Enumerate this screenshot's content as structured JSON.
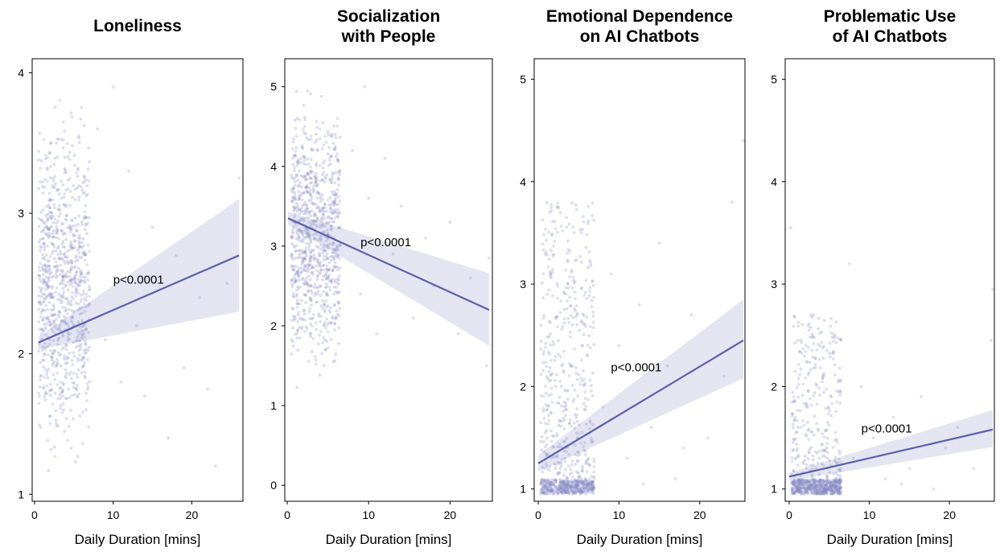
{
  "colors": {
    "point": "#8a8cc4",
    "line": "#5b5fa8",
    "ci_band": "#dfe0ee"
  },
  "chart_data": [
    {
      "type": "scatter",
      "title": "Loneliness",
      "xlabel": "Daily Duration [mins]",
      "ylabel": "",
      "xlim": [
        -0.3,
        26.5
      ],
      "ylim": [
        0.95,
        4.1
      ],
      "xticks": [
        0,
        10,
        20
      ],
      "yticks": [
        1,
        2,
        3,
        4
      ],
      "cluster": {
        "x_range": [
          0.5,
          7
        ],
        "y_range": [
          1,
          4
        ],
        "count": 900
      },
      "outliers": [
        {
          "x": 8,
          "y": 3.6
        },
        {
          "x": 9,
          "y": 2.1
        },
        {
          "x": 11,
          "y": 1.8
        },
        {
          "x": 12,
          "y": 3.3
        },
        {
          "x": 14,
          "y": 1.7
        },
        {
          "x": 15,
          "y": 2.9
        },
        {
          "x": 17,
          "y": 1.4
        },
        {
          "x": 18,
          "y": 2.7
        },
        {
          "x": 19,
          "y": 1.9
        },
        {
          "x": 21,
          "y": 2.4
        },
        {
          "x": 23,
          "y": 1.2
        },
        {
          "x": 24.5,
          "y": 2.5
        },
        {
          "x": 26,
          "y": 3.25
        },
        {
          "x": 22,
          "y": 1.75
        },
        {
          "x": 10,
          "y": 3.9
        },
        {
          "x": 13,
          "y": 2.2
        }
      ],
      "regression": {
        "x": [
          0.5,
          26
        ],
        "y": [
          2.08,
          2.7
        ]
      },
      "ci": {
        "lower": [
          2.03,
          2.3
        ],
        "upper": [
          2.12,
          3.1
        ]
      },
      "annotation": {
        "text": "p<0.0001",
        "x": 10,
        "y": 2.5
      }
    },
    {
      "type": "scatter",
      "title": "Socialization with People",
      "title_lines": [
        "Socialization",
        "with People"
      ],
      "xlabel": "Daily Duration [mins]",
      "ylabel": "",
      "xlim": [
        -0.3,
        25.2
      ],
      "ylim": [
        -0.2,
        5.35
      ],
      "xticks": [
        0,
        10,
        20
      ],
      "yticks": [
        0,
        1,
        2,
        3,
        4,
        5
      ],
      "cluster": {
        "x_range": [
          0.5,
          6.5
        ],
        "y_range": [
          1,
          5.2
        ],
        "count": 900
      },
      "outliers": [
        {
          "x": 8,
          "y": 4.2
        },
        {
          "x": 9,
          "y": 2.4
        },
        {
          "x": 10,
          "y": 3.6
        },
        {
          "x": 11,
          "y": 1.9
        },
        {
          "x": 12,
          "y": 4.1
        },
        {
          "x": 13,
          "y": 2.9
        },
        {
          "x": 14,
          "y": 3.5
        },
        {
          "x": 15.5,
          "y": 2.1
        },
        {
          "x": 17,
          "y": 3.1
        },
        {
          "x": 18,
          "y": 2.5
        },
        {
          "x": 20,
          "y": 3.3
        },
        {
          "x": 21,
          "y": 1.9
        },
        {
          "x": 22.5,
          "y": 2.6
        },
        {
          "x": 24.8,
          "y": 2.85
        },
        {
          "x": 24.5,
          "y": 1.5
        },
        {
          "x": 9.5,
          "y": 5.0
        }
      ],
      "regression": {
        "x": [
          0.1,
          24.8
        ],
        "y": [
          3.35,
          2.2
        ]
      },
      "ci": {
        "lower": [
          3.27,
          1.75
        ],
        "upper": [
          3.43,
          2.66
        ]
      },
      "annotation": {
        "text": "p<0.0001",
        "x": 9,
        "y": 3.0
      }
    },
    {
      "type": "scatter",
      "title": "Emotional Dependence on AI Chatbots",
      "title_lines": [
        "Emotional Dependence",
        "on AI Chatbots"
      ],
      "xlabel": "Daily Duration [mins]",
      "ylabel": "",
      "xlim": [
        -0.5,
        25.6
      ],
      "ylim": [
        0.88,
        5.2
      ],
      "xticks": [
        0,
        10,
        20
      ],
      "yticks": [
        1,
        2,
        3,
        4,
        5
      ],
      "cluster": {
        "x_range": [
          0.3,
          7
        ],
        "y_range": [
          1,
          3.8
        ],
        "count": 500,
        "floor_count": 400
      },
      "outliers": [
        {
          "x": 8,
          "y": 1.8
        },
        {
          "x": 9,
          "y": 3.1
        },
        {
          "x": 10,
          "y": 2.4
        },
        {
          "x": 11,
          "y": 1.3
        },
        {
          "x": 12.5,
          "y": 2.8
        },
        {
          "x": 14,
          "y": 1.6
        },
        {
          "x": 15,
          "y": 3.4
        },
        {
          "x": 16,
          "y": 2.2
        },
        {
          "x": 18,
          "y": 1.4
        },
        {
          "x": 19,
          "y": 2.7
        },
        {
          "x": 21,
          "y": 1.5
        },
        {
          "x": 23,
          "y": 2.1
        },
        {
          "x": 25.4,
          "y": 4.4
        },
        {
          "x": 24,
          "y": 3.8
        },
        {
          "x": 17,
          "y": 1.1
        },
        {
          "x": 13,
          "y": 1.05
        }
      ],
      "regression": {
        "x": [
          0,
          25.4
        ],
        "y": [
          1.25,
          2.45
        ]
      },
      "ci": {
        "lower": [
          1.17,
          2.08
        ],
        "upper": [
          1.33,
          2.85
        ]
      },
      "annotation": {
        "text": "p<0.0001",
        "x": 9,
        "y": 2.15
      }
    },
    {
      "type": "scatter",
      "title": "Problematic Use of AI Chatbots",
      "title_lines": [
        "Problematic Use",
        "of AI Chatbots"
      ],
      "xlabel": "Daily Duration [mins]",
      "ylabel": "",
      "xlim": [
        -0.5,
        25.6
      ],
      "ylim": [
        0.88,
        5.2
      ],
      "xticks": [
        0,
        10,
        20
      ],
      "yticks": [
        1,
        2,
        3,
        4,
        5
      ],
      "cluster": {
        "x_range": [
          0.3,
          6.5
        ],
        "y_range": [
          1,
          2.7
        ],
        "count": 350,
        "floor_count": 500
      },
      "outliers": [
        {
          "x": 8,
          "y": 1.3
        },
        {
          "x": 9,
          "y": 2.0
        },
        {
          "x": 10.5,
          "y": 1.5
        },
        {
          "x": 12,
          "y": 1.1
        },
        {
          "x": 13,
          "y": 1.7
        },
        {
          "x": 15,
          "y": 1.2
        },
        {
          "x": 16.5,
          "y": 1.9
        },
        {
          "x": 18,
          "y": 1.0
        },
        {
          "x": 19.5,
          "y": 1.4
        },
        {
          "x": 21,
          "y": 1.6
        },
        {
          "x": 23,
          "y": 1.2
        },
        {
          "x": 25.4,
          "y": 2.95
        },
        {
          "x": 25.2,
          "y": 2.45
        },
        {
          "x": 7.5,
          "y": 3.2
        },
        {
          "x": 0.2,
          "y": 3.55
        },
        {
          "x": 14,
          "y": 1.05
        }
      ],
      "regression": {
        "x": [
          0,
          25.4
        ],
        "y": [
          1.12,
          1.58
        ]
      },
      "ci": {
        "lower": [
          1.08,
          1.41
        ],
        "upper": [
          1.16,
          1.77
        ]
      },
      "annotation": {
        "text": "p<0.0001",
        "x": 9,
        "y": 1.55
      }
    }
  ]
}
